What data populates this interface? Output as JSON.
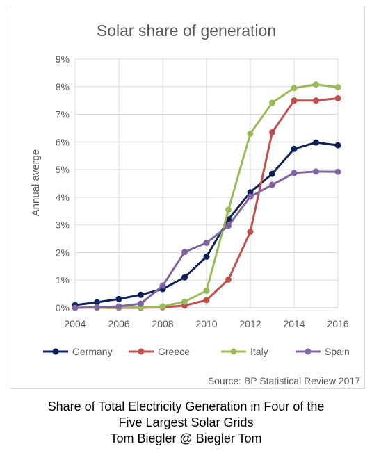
{
  "chart_data": {
    "type": "line",
    "title": "Solar share of generation",
    "ylabel": "Annual averge",
    "xlabel": "",
    "x": [
      2004,
      2005,
      2006,
      2007,
      2008,
      2009,
      2010,
      2011,
      2012,
      2013,
      2014,
      2015,
      2016
    ],
    "x_ticks": [
      "2004",
      "2006",
      "2008",
      "2010",
      "2012",
      "2014",
      "2016"
    ],
    "y_ticks": [
      "0%",
      "1%",
      "2%",
      "3%",
      "4%",
      "5%",
      "6%",
      "7%",
      "8%",
      "9%"
    ],
    "ylim": [
      0,
      9
    ],
    "xlim": [
      2004,
      2016
    ],
    "grid": "horizontal",
    "legend_position": "bottom",
    "series": [
      {
        "name": "Germany",
        "color": "#0d2057",
        "values": [
          0.1,
          0.2,
          0.32,
          0.47,
          0.68,
          1.1,
          1.85,
          3.2,
          4.18,
          4.85,
          5.75,
          5.98,
          5.88
        ]
      },
      {
        "name": "Greece",
        "color": "#c0504d",
        "values": [
          0.0,
          0.0,
          0.0,
          0.0,
          0.02,
          0.08,
          0.28,
          1.02,
          2.75,
          6.35,
          7.5,
          7.5,
          7.58
        ]
      },
      {
        "name": "Italy",
        "color": "#9bbb59",
        "values": [
          0.0,
          0.0,
          0.02,
          0.02,
          0.05,
          0.22,
          0.62,
          3.55,
          6.3,
          7.42,
          7.95,
          8.08,
          7.98
        ]
      },
      {
        "name": "Spain",
        "color": "#8064a2",
        "values": [
          0.0,
          0.02,
          0.05,
          0.15,
          0.8,
          2.02,
          2.35,
          2.97,
          4.02,
          4.45,
          4.88,
          4.93,
          4.92
        ]
      }
    ],
    "source": "Source: BP Statistical Review 2017"
  },
  "caption": {
    "line1": "Share of Total Electricity Generation in Four of the",
    "line2": "Five Largest Solar Grids",
    "line3": "Tom Biegler @ Biegler Tom"
  }
}
